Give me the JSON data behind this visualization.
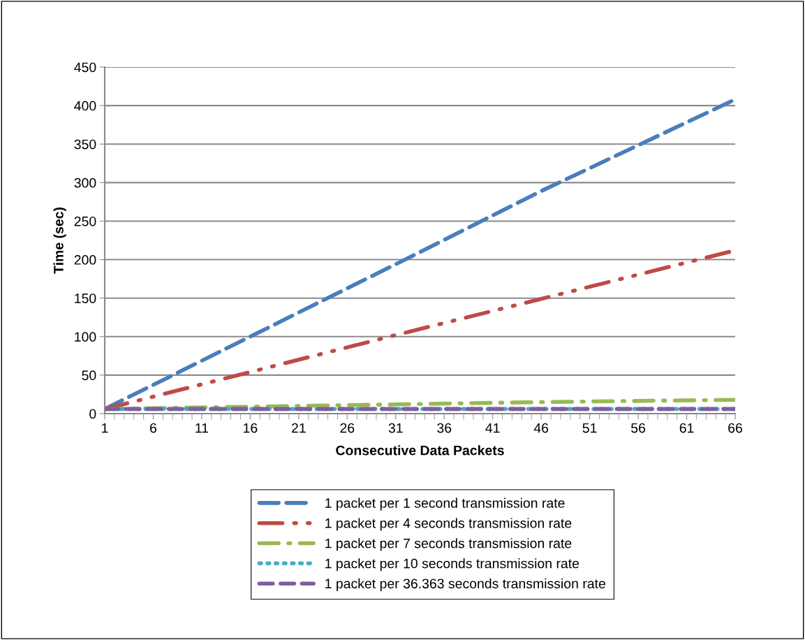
{
  "chart_data": {
    "type": "line",
    "xlabel": "Consecutive Data Packets",
    "ylabel": "Time (sec)",
    "xlim": [
      1,
      66
    ],
    "xticks": [
      1,
      6,
      11,
      16,
      21,
      26,
      31,
      36,
      41,
      46,
      51,
      56,
      61,
      66
    ],
    "ylim": [
      0,
      450
    ],
    "yticks": [
      0,
      50,
      100,
      150,
      200,
      250,
      300,
      350,
      400,
      450
    ],
    "grid": "y",
    "legend": "bottom",
    "marker": "none",
    "series": [
      {
        "name": "1 packet per 1 second transmission rate",
        "color": "#4a7ebb",
        "line_style": "dashed",
        "x": [
          1,
          16,
          31,
          46,
          66
        ],
        "values": [
          6,
          100,
          194,
          289,
          408
        ]
      },
      {
        "name": "1 packet per 4 seconds transmission rate",
        "color": "#be4b48",
        "line_style": "dashdotdot",
        "x": [
          1,
          16,
          31,
          46,
          66
        ],
        "values": [
          6,
          54,
          102,
          149,
          212
        ]
      },
      {
        "name": "1 packet per 7 seconds transmission rate",
        "color": "#98b954",
        "line_style": "dashdot",
        "x": [
          1,
          16,
          31,
          46,
          66
        ],
        "values": [
          6,
          9,
          12,
          15,
          18
        ]
      },
      {
        "name": "1 packet per 10 seconds transmission rate",
        "color": "#46aac5",
        "line_style": "dotted",
        "x": [
          1,
          16,
          31,
          46,
          66
        ],
        "values": [
          6,
          6,
          6,
          6,
          6
        ]
      },
      {
        "name": "1 packet per 36.363 seconds transmission rate",
        "color": "#7d5fa0",
        "line_style": "longdashed",
        "x": [
          1,
          16,
          31,
          46,
          66
        ],
        "values": [
          6,
          6,
          6,
          6,
          6
        ]
      }
    ]
  }
}
